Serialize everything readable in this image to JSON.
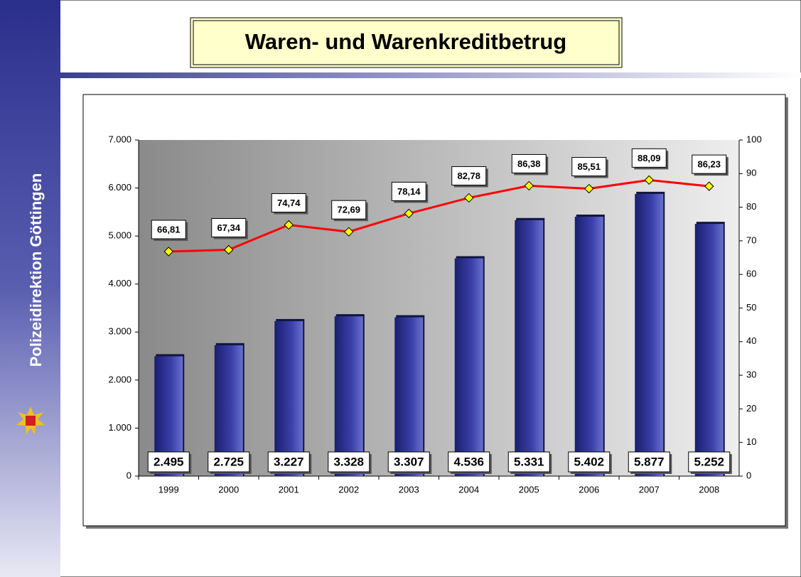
{
  "sidebar": {
    "text": "Polizeidirektion Göttingen"
  },
  "chart_data": {
    "type": "bar_line",
    "title": "Waren- und Warenkreditbetrug",
    "categories": [
      "1999",
      "2000",
      "2001",
      "2002",
      "2003",
      "2004",
      "2005",
      "2006",
      "2007",
      "2008"
    ],
    "series": [
      {
        "type": "bar",
        "color": "#1f2a80",
        "values": [
          2495,
          2725,
          3227,
          3328,
          3307,
          4536,
          5331,
          5402,
          5877,
          5252
        ],
        "value_labels": [
          "2.495",
          "2.725",
          "3.227",
          "3.328",
          "3.307",
          "4.536",
          "5.331",
          "5.402",
          "5.877",
          "5.252"
        ]
      },
      {
        "type": "line",
        "axis": "y2",
        "color": "#ff0000",
        "marker_color": "#ffff00",
        "values": [
          66.81,
          67.34,
          74.74,
          72.69,
          78.14,
          82.78,
          86.38,
          85.51,
          88.09,
          86.23
        ],
        "value_labels": [
          "66,81",
          "67,34",
          "74,74",
          "72,69",
          "78,14",
          "82,78",
          "86,38",
          "85,51",
          "88,09",
          "86,23"
        ]
      }
    ],
    "ylim": [
      0,
      7000
    ],
    "yticks": [
      0,
      {
        "value": 1000,
        "label": "1.000"
      },
      {
        "value": 2000,
        "label": "2.000"
      },
      {
        "value": 3000,
        "label": "3.000"
      },
      {
        "value": 4000,
        "label": "4.000"
      },
      {
        "value": 5000,
        "label": "5.000"
      },
      {
        "value": 6000,
        "label": "6.000"
      },
      {
        "value": 7000,
        "label": "7.000"
      }
    ],
    "y2lim": [
      0,
      100
    ],
    "y2ticks": [
      0,
      10,
      20,
      30,
      40,
      50,
      60,
      70,
      80,
      90,
      100
    ]
  }
}
